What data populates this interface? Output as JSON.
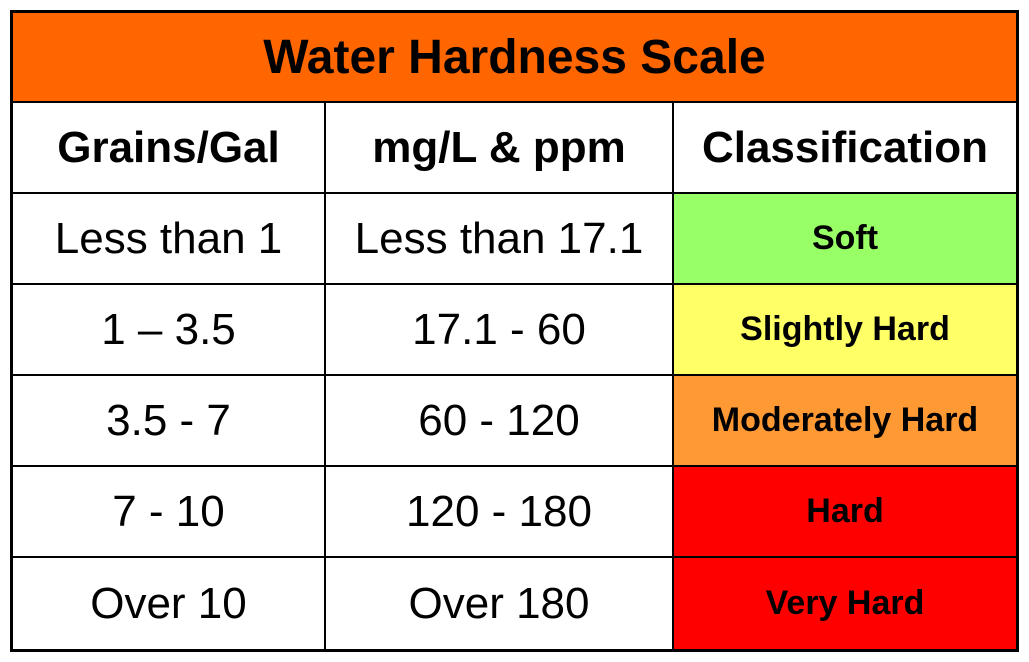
{
  "colors": {
    "title_background": "#FF6600",
    "soft": "#99FF66",
    "slightly_hard": "#FFFF66",
    "moderately_hard": "#FF9933",
    "hard": "#FF0000",
    "very_hard": "#FF0000"
  },
  "chart_data": {
    "type": "table",
    "title": "Water Hardness Scale",
    "columns": [
      "Grains/Gal",
      "mg/L & ppm",
      "Classification"
    ],
    "rows": [
      {
        "grains": "Less than 1",
        "mgl": "Less than 17.1",
        "classification": "Soft",
        "color": "#99FF66"
      },
      {
        "grains": "1 – 3.5",
        "mgl": "17.1 - 60",
        "classification": "Slightly Hard",
        "color": "#FFFF66"
      },
      {
        "grains": "3.5 - 7",
        "mgl": "60 - 120",
        "classification": "Moderately Hard",
        "color": "#FF9933"
      },
      {
        "grains": "7 - 10",
        "mgl": "120 - 180",
        "classification": "Hard",
        "color": "#FF0000"
      },
      {
        "grains": "Over 10",
        "mgl": "Over 180",
        "classification": "Very Hard",
        "color": "#FF0000"
      }
    ]
  }
}
